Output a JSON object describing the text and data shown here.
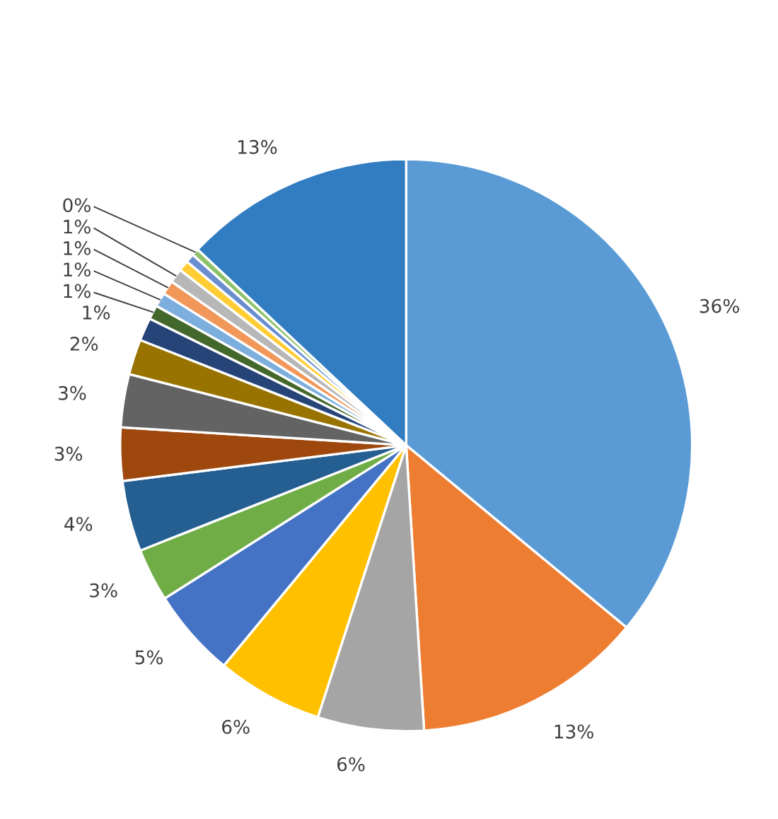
{
  "chart_data": {
    "type": "pie",
    "categories": [
      null,
      null,
      null,
      null,
      null,
      null,
      null,
      null,
      null,
      null,
      null,
      null,
      null,
      null,
      null,
      null,
      null,
      null,
      null
    ],
    "values": [
      36,
      13,
      6,
      6,
      5,
      3,
      4,
      3,
      3,
      2,
      1.3,
      0.8,
      0.8,
      0.8,
      0.8,
      0.6,
      0.5,
      0.4,
      13
    ],
    "value_labels": [
      "36%",
      "13%",
      "6%",
      "6%",
      "5%",
      "3%",
      "4%",
      "3%",
      "3%",
      "2%",
      "1%",
      "1%",
      "1%",
      "1%",
      "1%",
      null,
      null,
      "0%",
      "13%"
    ],
    "colors": [
      "#5b9bd5",
      "#ed7d31",
      "#a5a5a5",
      "#ffc000",
      "#4472c4",
      "#70ad47",
      "#255e91",
      "#9e480e",
      "#636363",
      "#997300",
      "#264478",
      "#43682b",
      "#7cafdd",
      "#f1975a",
      "#b7b7b7",
      "#ffcd33",
      "#698ed0",
      "#8cc168",
      "#327dc2"
    ],
    "legend": false
  }
}
